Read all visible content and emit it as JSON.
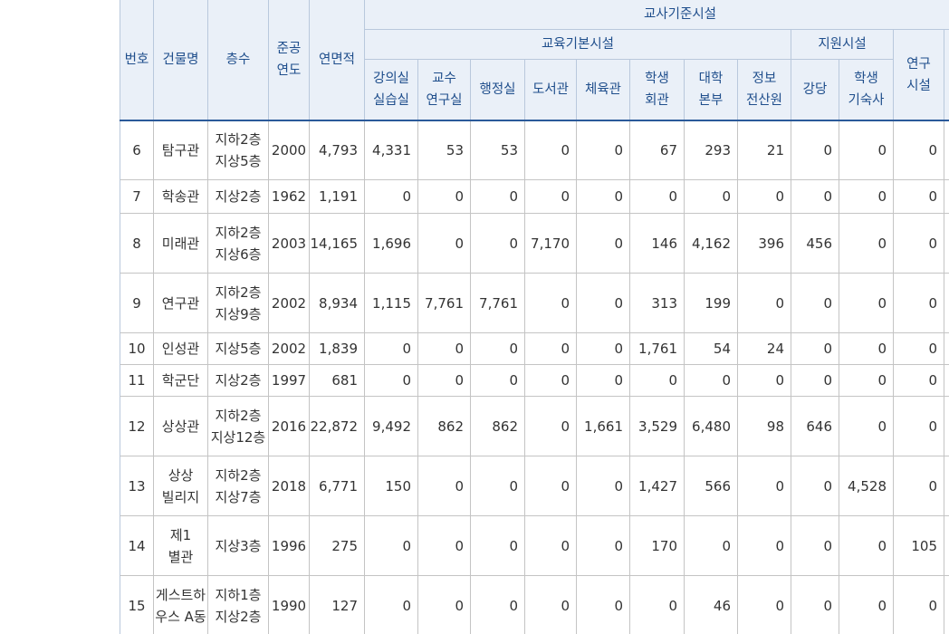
{
  "header": {
    "group": "교사기준시설",
    "subgroups": [
      "교육기본시설",
      "지원시설"
    ],
    "columns": [
      "번호",
      "건물명",
      "층수",
      "준공\n연도",
      "연면적",
      "강의실\n실습실",
      "교수\n연구실",
      "행정실",
      "도서관",
      "체육관",
      "학생\n회관",
      "대학\n본부",
      "정보\n전산원",
      "강당",
      "학생\n기숙사",
      "연구\n시설"
    ]
  },
  "rows": [
    [
      "6",
      "탐구관",
      "지하2층\n지상5층",
      "2000",
      "4,793",
      "4,331",
      "53",
      "53",
      "0",
      "0",
      "67",
      "293",
      "21",
      "0",
      "0",
      "0"
    ],
    [
      "7",
      "학송관",
      "지상2층",
      "1962",
      "1,191",
      "0",
      "0",
      "0",
      "0",
      "0",
      "0",
      "0",
      "0",
      "0",
      "0",
      "0"
    ],
    [
      "8",
      "미래관",
      "지하2층\n지상6층",
      "2003",
      "14,165",
      "1,696",
      "0",
      "0",
      "7,170",
      "0",
      "146",
      "4,162",
      "396",
      "456",
      "0",
      "0"
    ],
    [
      "9",
      "연구관",
      "지하2층\n지상9층",
      "2002",
      "8,934",
      "1,115",
      "7,761",
      "7,761",
      "0",
      "0",
      "313",
      "199",
      "0",
      "0",
      "0",
      "0"
    ],
    [
      "10",
      "인성관",
      "지상5층",
      "2002",
      "1,839",
      "0",
      "0",
      "0",
      "0",
      "0",
      "1,761",
      "54",
      "24",
      "0",
      "0",
      "0"
    ],
    [
      "11",
      "학군단",
      "지상2층",
      "1997",
      "681",
      "0",
      "0",
      "0",
      "0",
      "0",
      "0",
      "0",
      "0",
      "0",
      "0",
      "0"
    ],
    [
      "12",
      "상상관",
      "지하2층\n지상12층",
      "2016",
      "22,872",
      "9,492",
      "862",
      "862",
      "0",
      "1,661",
      "3,529",
      "6,480",
      "98",
      "646",
      "0",
      "0"
    ],
    [
      "13",
      "상상\n빌리지",
      "지하2층\n지상7층",
      "2018",
      "6,771",
      "150",
      "0",
      "0",
      "0",
      "0",
      "1,427",
      "566",
      "0",
      "0",
      "4,528",
      "0"
    ],
    [
      "14",
      "제1\n별관",
      "지상3층",
      "1996",
      "275",
      "0",
      "0",
      "0",
      "0",
      "0",
      "170",
      "0",
      "0",
      "0",
      "0",
      "105"
    ],
    [
      "15",
      "게스트하\n우스 A동",
      "지하1층\n지상2층",
      "1990",
      "127",
      "0",
      "0",
      "0",
      "0",
      "0",
      "0",
      "46",
      "0",
      "0",
      "0",
      "0"
    ]
  ]
}
